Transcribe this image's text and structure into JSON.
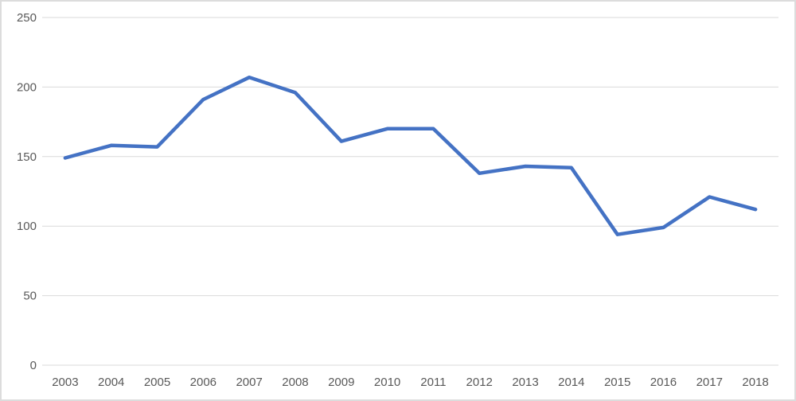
{
  "chart_data": {
    "type": "line",
    "title": "",
    "categories": [
      "2003",
      "2004",
      "2005",
      "2006",
      "2007",
      "2008",
      "2009",
      "2010",
      "2011",
      "2012",
      "2013",
      "2014",
      "2015",
      "2016",
      "2017",
      "2018"
    ],
    "series": [
      {
        "name": "",
        "values": [
          149,
          158,
          157,
          191,
          207,
          196,
          161,
          170,
          170,
          138,
          143,
          142,
          94,
          99,
          121,
          112
        ],
        "color": "#4472C4"
      }
    ],
    "xlabel": "",
    "ylabel": "",
    "ylim": [
      0,
      250
    ],
    "yticks": [
      0,
      50,
      100,
      150,
      200,
      250
    ],
    "grid": true,
    "legend_position": "none"
  },
  "theme": {
    "line_color": "#4472C4",
    "line_width": 4.5,
    "gridline_color": "#D9D9D9",
    "axis_line_color": "#D9D9D9",
    "tick_label_color": "#595959",
    "background_color": "#FFFFFF",
    "border_color": "#DCDCDC"
  }
}
